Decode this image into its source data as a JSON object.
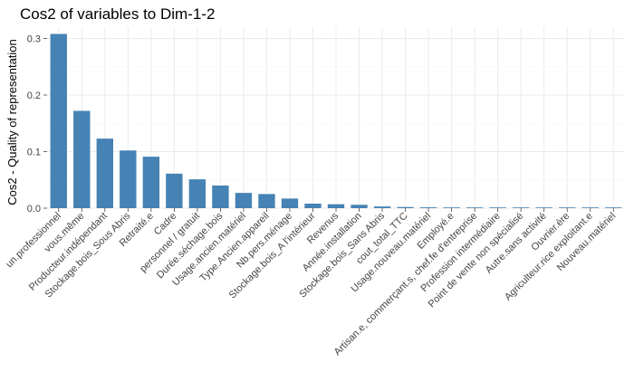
{
  "chart_data": {
    "type": "bar",
    "title": "Cos2 of variables to Dim-1-2",
    "ylabel": "Cos2 - Quality of representation",
    "xlabel": "",
    "ylim": [
      0,
      0.32
    ],
    "yticks": [
      0,
      0.1,
      0.2,
      0.3
    ],
    "ytick_labels": [
      "0.0",
      "0.1",
      "0.2",
      "0.3"
    ],
    "grid": true,
    "bar_color": "#4682b4",
    "categories": [
      "un.professionnel",
      "vous.même",
      "Producteur.indépendant",
      "Stockage.bois_Sous Abris",
      "Retraité.e",
      "Cadre",
      "personnel / gratuit",
      "Durée.séchage.bois",
      "Usage.ancien.matériel",
      "Type.Ancien.appareil",
      "Nb.pers.ménage",
      "Stockage.bois_A l'intérieur",
      "Revenus",
      "Année.installation",
      "Stockage.bois_Sans Abris",
      "cout_total_TTC",
      "Usage.nouveau.matériel",
      "Employé.e",
      "Artisan.e, commerçant.s, chef.fe d'entreprise",
      "Profession intermédiaire",
      "Point de vente non spécialisé",
      "Autre.sans activité",
      "Ouvrier.ère",
      "Agriculteur.rice exploitant.e",
      "Nouveau.matériel"
    ],
    "values": [
      0.308,
      0.172,
      0.123,
      0.102,
      0.091,
      0.061,
      0.051,
      0.04,
      0.027,
      0.025,
      0.017,
      0.008,
      0.007,
      0.006,
      0.003,
      0.002,
      0.0015,
      0.0012,
      0.001,
      0.0009,
      0.0008,
      0.0007,
      0.0006,
      0.0005,
      0.0004
    ]
  }
}
